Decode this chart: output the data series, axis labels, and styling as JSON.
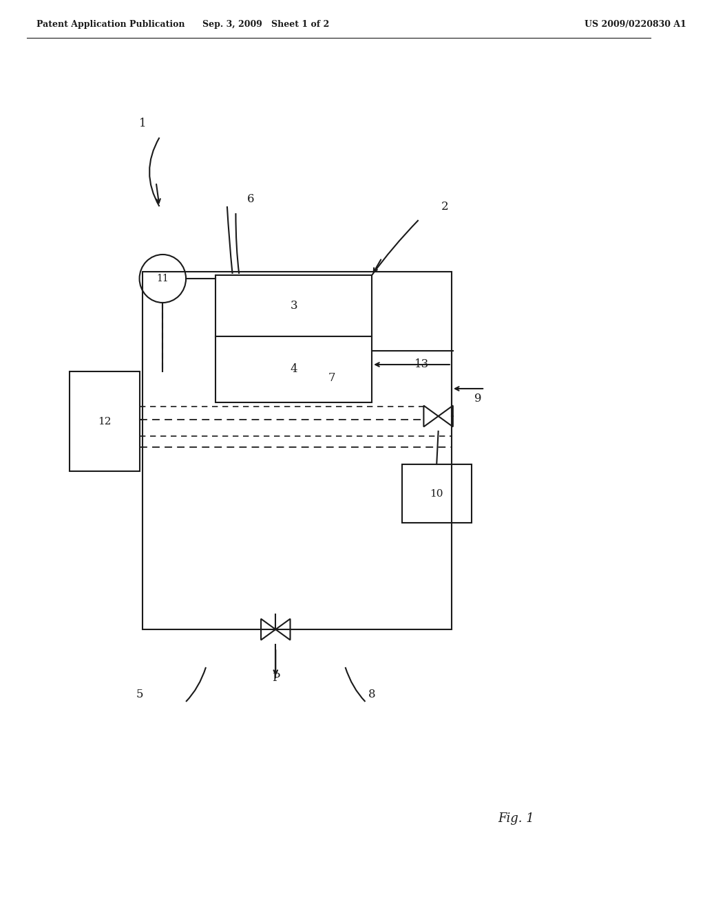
{
  "bg_color": "#ffffff",
  "line_color": "#1a1a1a",
  "header_left": "Patent Application Publication",
  "header_mid": "Sep. 3, 2009   Sheet 1 of 2",
  "header_right": "US 2009/0220830 A1",
  "fig_label": "Fig. 1",
  "label_1": "1",
  "label_2": "2",
  "label_3": "3",
  "label_4": "4",
  "label_5": "5",
  "label_6": "6",
  "label_7": "7",
  "label_8": "8",
  "label_9": "9",
  "label_10": "10",
  "label_11": "11",
  "label_12": "12",
  "label_13": "13",
  "label_P": "P"
}
